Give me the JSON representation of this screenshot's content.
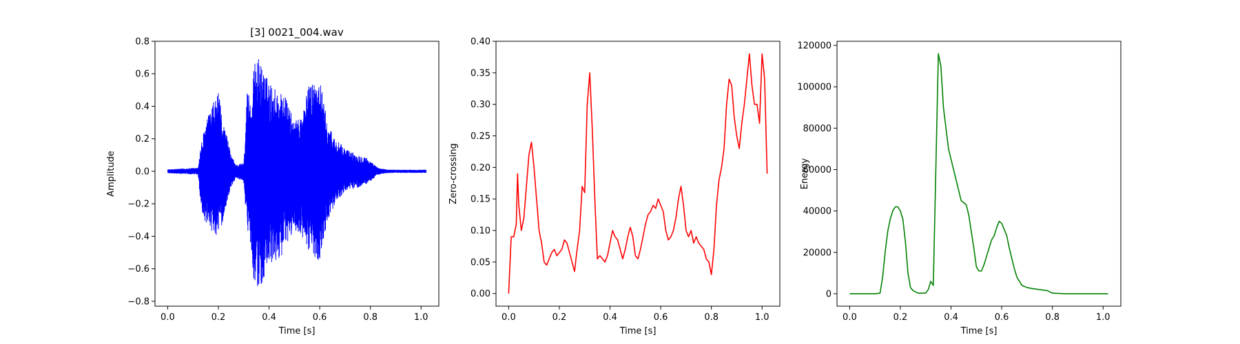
{
  "chart_data": [
    {
      "type": "line",
      "title": "[3] 0021_004.wav",
      "xlabel": "Time [s]",
      "ylabel": "Amplitude",
      "xlim": [
        -0.05,
        1.07
      ],
      "ylim": [
        -0.83,
        0.8
      ],
      "xticks": [
        "0.0",
        "0.2",
        "0.4",
        "0.6",
        "0.8",
        "1.0"
      ],
      "yticks": [
        "−0.8",
        "−0.6",
        "−0.4",
        "−0.2",
        "0.0",
        "0.2",
        "0.4",
        "0.6",
        "0.8"
      ],
      "grid": false,
      "series": [
        {
          "color": "#0000ff",
          "style": "waveform",
          "envelope": {
            "t": [
              0.0,
              0.12,
              0.13,
              0.15,
              0.18,
              0.2,
              0.22,
              0.24,
              0.25,
              0.27,
              0.3,
              0.315,
              0.32,
              0.33,
              0.34,
              0.35,
              0.37,
              0.4,
              0.43,
              0.46,
              0.5,
              0.53,
              0.56,
              0.6,
              0.63,
              0.66,
              0.7,
              0.75,
              0.78,
              0.8,
              0.83,
              0.86,
              0.9,
              1.02
            ],
            "upper": [
              0.01,
              0.02,
              0.15,
              0.3,
              0.42,
              0.48,
              0.3,
              0.18,
              0.1,
              0.04,
              0.05,
              0.55,
              0.5,
              0.4,
              0.62,
              0.73,
              0.65,
              0.55,
              0.5,
              0.48,
              0.3,
              0.35,
              0.55,
              0.58,
              0.3,
              0.2,
              0.14,
              0.1,
              0.09,
              0.06,
              0.02,
              0.01,
              0.008,
              0.008
            ],
            "lower": [
              -0.01,
              -0.02,
              -0.2,
              -0.35,
              -0.38,
              -0.4,
              -0.3,
              -0.15,
              -0.1,
              -0.04,
              -0.06,
              -0.4,
              -0.3,
              -0.5,
              -0.66,
              -0.76,
              -0.7,
              -0.6,
              -0.55,
              -0.5,
              -0.35,
              -0.42,
              -0.5,
              -0.55,
              -0.3,
              -0.2,
              -0.12,
              -0.1,
              -0.08,
              -0.06,
              -0.02,
              -0.01,
              -0.008,
              -0.008
            ]
          }
        }
      ]
    },
    {
      "type": "line",
      "title": "",
      "xlabel": "Time [s]",
      "ylabel": "Zero-crossing",
      "xlim": [
        -0.05,
        1.07
      ],
      "ylim": [
        -0.02,
        0.4
      ],
      "xticks": [
        "0.0",
        "0.2",
        "0.4",
        "0.6",
        "0.8",
        "1.0"
      ],
      "yticks": [
        "0.00",
        "0.05",
        "0.10",
        "0.15",
        "0.20",
        "0.25",
        "0.30",
        "0.35",
        "0.40"
      ],
      "grid": false,
      "series": [
        {
          "color": "#ff0000",
          "x": [
            0.0,
            0.01,
            0.02,
            0.03,
            0.035,
            0.04,
            0.05,
            0.06,
            0.07,
            0.08,
            0.09,
            0.1,
            0.11,
            0.12,
            0.13,
            0.14,
            0.15,
            0.16,
            0.17,
            0.18,
            0.19,
            0.2,
            0.21,
            0.22,
            0.23,
            0.24,
            0.25,
            0.26,
            0.27,
            0.28,
            0.29,
            0.3,
            0.31,
            0.32,
            0.33,
            0.34,
            0.35,
            0.36,
            0.37,
            0.38,
            0.39,
            0.4,
            0.41,
            0.42,
            0.43,
            0.44,
            0.45,
            0.46,
            0.47,
            0.48,
            0.49,
            0.5,
            0.51,
            0.52,
            0.53,
            0.54,
            0.55,
            0.56,
            0.57,
            0.58,
            0.59,
            0.6,
            0.61,
            0.62,
            0.63,
            0.64,
            0.65,
            0.66,
            0.67,
            0.68,
            0.69,
            0.7,
            0.71,
            0.72,
            0.73,
            0.74,
            0.75,
            0.76,
            0.77,
            0.78,
            0.79,
            0.8,
            0.81,
            0.82,
            0.83,
            0.84,
            0.85,
            0.86,
            0.87,
            0.88,
            0.89,
            0.9,
            0.91,
            0.92,
            0.93,
            0.94,
            0.95,
            0.96,
            0.97,
            0.98,
            0.99,
            1.0,
            1.01,
            1.02
          ],
          "y": [
            0.0,
            0.09,
            0.09,
            0.11,
            0.19,
            0.14,
            0.1,
            0.12,
            0.17,
            0.22,
            0.24,
            0.2,
            0.15,
            0.1,
            0.08,
            0.05,
            0.045,
            0.055,
            0.065,
            0.07,
            0.06,
            0.065,
            0.07,
            0.085,
            0.08,
            0.065,
            0.05,
            0.035,
            0.07,
            0.1,
            0.17,
            0.16,
            0.3,
            0.35,
            0.26,
            0.15,
            0.055,
            0.06,
            0.055,
            0.05,
            0.06,
            0.08,
            0.1,
            0.09,
            0.085,
            0.07,
            0.055,
            0.07,
            0.09,
            0.105,
            0.09,
            0.06,
            0.055,
            0.07,
            0.09,
            0.11,
            0.125,
            0.13,
            0.14,
            0.135,
            0.15,
            0.14,
            0.13,
            0.1,
            0.085,
            0.09,
            0.1,
            0.12,
            0.15,
            0.17,
            0.14,
            0.1,
            0.09,
            0.1,
            0.08,
            0.09,
            0.08,
            0.075,
            0.07,
            0.055,
            0.05,
            0.03,
            0.07,
            0.14,
            0.18,
            0.2,
            0.23,
            0.3,
            0.34,
            0.33,
            0.28,
            0.25,
            0.23,
            0.27,
            0.3,
            0.34,
            0.38,
            0.33,
            0.3,
            0.3,
            0.27,
            0.38,
            0.34,
            0.19
          ]
        }
      ]
    },
    {
      "type": "line",
      "title": "",
      "xlabel": "Time [s]",
      "ylabel": "Energy",
      "xlim": [
        -0.05,
        1.07
      ],
      "ylim": [
        -6000,
        122000
      ],
      "xticks": [
        "0.0",
        "0.2",
        "0.4",
        "0.6",
        "0.8",
        "1.0"
      ],
      "yticks": [
        "0",
        "20000",
        "40000",
        "60000",
        "80000",
        "100000",
        "120000"
      ],
      "grid": false,
      "series": [
        {
          "color": "#008000",
          "x": [
            0.0,
            0.05,
            0.1,
            0.12,
            0.13,
            0.14,
            0.15,
            0.16,
            0.17,
            0.18,
            0.19,
            0.2,
            0.21,
            0.22,
            0.23,
            0.24,
            0.25,
            0.27,
            0.3,
            0.31,
            0.32,
            0.33,
            0.34,
            0.35,
            0.36,
            0.37,
            0.38,
            0.39,
            0.4,
            0.41,
            0.42,
            0.43,
            0.44,
            0.45,
            0.46,
            0.47,
            0.48,
            0.49,
            0.5,
            0.51,
            0.52,
            0.53,
            0.54,
            0.55,
            0.56,
            0.57,
            0.58,
            0.59,
            0.6,
            0.61,
            0.62,
            0.63,
            0.64,
            0.65,
            0.66,
            0.68,
            0.7,
            0.72,
            0.75,
            0.78,
            0.8,
            0.85,
            0.9,
            1.02
          ],
          "y": [
            0,
            0,
            0,
            300,
            8000,
            20000,
            30000,
            36000,
            40000,
            42000,
            42000,
            40000,
            36000,
            25000,
            10000,
            3000,
            1500,
            300,
            300,
            2000,
            6000,
            4000,
            60000,
            116000,
            110000,
            90000,
            80000,
            70000,
            65000,
            60000,
            55000,
            50000,
            45000,
            44000,
            43000,
            38000,
            30000,
            22000,
            13000,
            11000,
            11000,
            14000,
            18000,
            22000,
            26000,
            28000,
            32000,
            35000,
            34000,
            31000,
            28000,
            22000,
            17000,
            12000,
            8000,
            4000,
            3000,
            2500,
            2000,
            1500,
            300,
            0,
            0,
            0
          ]
        }
      ]
    }
  ]
}
